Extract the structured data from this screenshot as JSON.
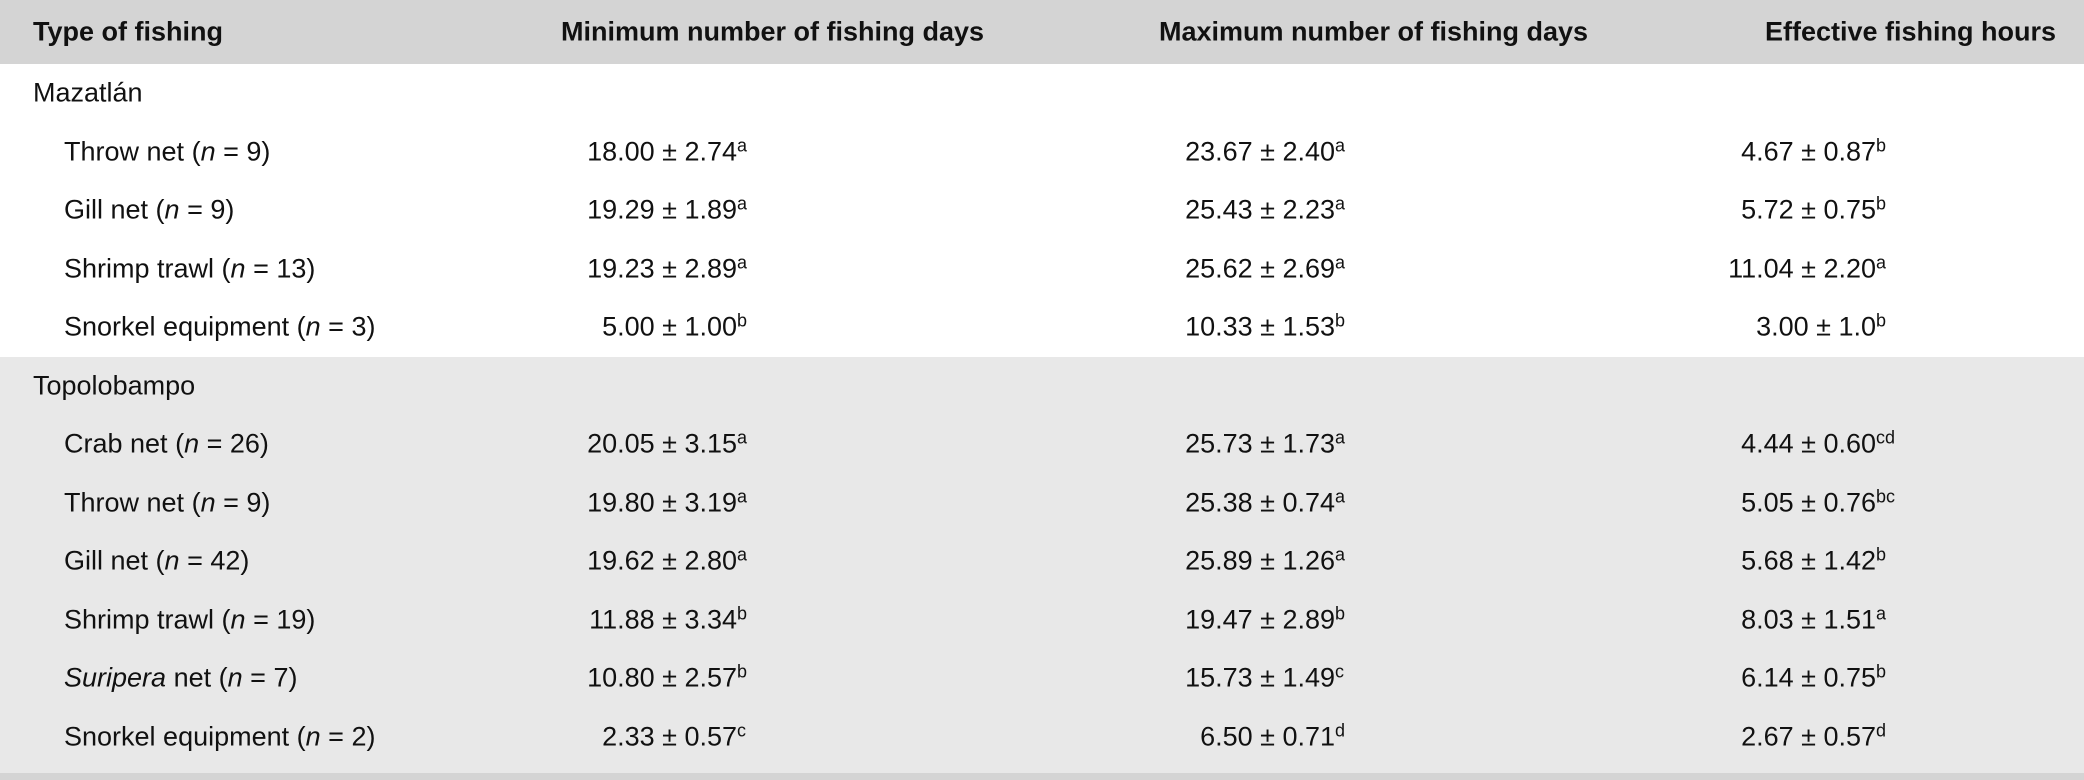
{
  "headers": [
    "Type of fishing",
    "Minimum number of fishing days",
    "Maximum number of fishing days",
    "Effective fishing hours"
  ],
  "groups": [
    {
      "name": "Mazatlán",
      "rows": [
        {
          "type": "Throw net",
          "italic": "",
          "n": "9",
          "min": "18.00 ± 2.74",
          "min_sup": "a",
          "max": "23.67 ± 2.40",
          "max_sup": "a",
          "hours": "4.67 ± 0.87",
          "hours_sup": "b"
        },
        {
          "type": "Gill net",
          "italic": "",
          "n": "9",
          "min": "19.29 ± 1.89",
          "min_sup": "a",
          "max": "25.43 ± 2.23",
          "max_sup": "a",
          "hours": "5.72 ± 0.75",
          "hours_sup": "b"
        },
        {
          "type": "Shrimp trawl",
          "italic": "",
          "n": "13",
          "min": "19.23 ± 2.89",
          "min_sup": "a",
          "max": "25.62 ± 2.69",
          "max_sup": "a",
          "hours": "11.04 ± 2.20",
          "hours_sup": "a"
        },
        {
          "type": "Snorkel equipment",
          "italic": "",
          "n": "3",
          "min": "5.00 ± 1.00",
          "min_sup": "b",
          "max": "10.33 ± 1.53",
          "max_sup": "b",
          "hours": "3.00 ± 1.0",
          "hours_sup": "b"
        }
      ]
    },
    {
      "name": "Topolobampo",
      "rows": [
        {
          "type": "Crab net",
          "italic": "",
          "n": "26",
          "min": "20.05 ± 3.15",
          "min_sup": "a",
          "max": "25.73 ± 1.73",
          "max_sup": "a",
          "hours": "4.44 ± 0.60",
          "hours_sup": "cd"
        },
        {
          "type": "Throw net",
          "italic": "",
          "n": "9",
          "min": "19.80 ± 3.19",
          "min_sup": "a",
          "max": "25.38 ± 0.74",
          "max_sup": "a",
          "hours": "5.05 ± 0.76",
          "hours_sup": "bc"
        },
        {
          "type": "Gill net",
          "italic": "",
          "n": "42",
          "min": "19.62 ± 2.80",
          "min_sup": "a",
          "max": "25.89 ± 1.26",
          "max_sup": "a",
          "hours": "5.68 ± 1.42",
          "hours_sup": "b"
        },
        {
          "type": "Shrimp trawl",
          "italic": "",
          "n": "19",
          "min": "11.88 ± 3.34",
          "min_sup": "b",
          "max": "19.47 ± 2.89",
          "max_sup": "b",
          "hours": "8.03 ± 1.51",
          "hours_sup": "a"
        },
        {
          "type": "net",
          "italic": "Suripera",
          "n": "7",
          "min": "10.80 ± 2.57",
          "min_sup": "b",
          "max": "15.73 ± 1.49",
          "max_sup": "c",
          "hours": "6.14 ± 0.75",
          "hours_sup": "b"
        },
        {
          "type": "Snorkel equipment",
          "italic": "",
          "n": "2",
          "min": "2.33 ± 0.57",
          "min_sup": "c",
          "max": "6.50 ± 0.71",
          "max_sup": "d",
          "hours": "2.67 ± 0.57",
          "hours_sup": "d"
        }
      ]
    }
  ],
  "n_symbol": "n",
  "colors": {
    "header_bg": "#d4d4d4",
    "alt_group_bg": "#e8e8e8"
  }
}
